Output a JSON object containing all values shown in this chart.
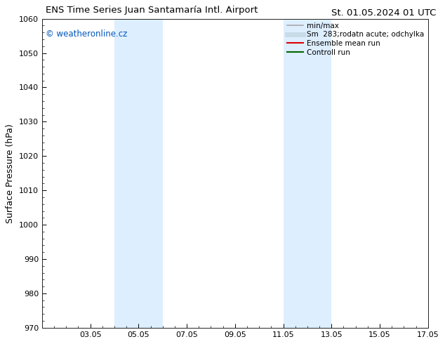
{
  "title_left": "ENS Time Series Juan Santamaría Intl. Airport",
  "title_right": "St. 01.05.2024 01 UTC",
  "ylabel": "Surface Pressure (hPa)",
  "ylim": [
    970,
    1060
  ],
  "yticks": [
    970,
    980,
    990,
    1000,
    1010,
    1020,
    1030,
    1040,
    1050,
    1060
  ],
  "xlim": [
    1.0,
    17.0
  ],
  "xtick_labels": [
    "03.05",
    "05.05",
    "07.05",
    "09.05",
    "11.05",
    "13.05",
    "15.05",
    "17.05"
  ],
  "xtick_positions": [
    3,
    5,
    7,
    9,
    11,
    13,
    15,
    17
  ],
  "shaded_bands": [
    {
      "x_start": 4.0,
      "x_end": 6.0
    },
    {
      "x_start": 11.0,
      "x_end": 13.0
    }
  ],
  "shaded_color": "#ddeeff",
  "background_color": "#ffffff",
  "watermark_text": "© weatheronline.cz",
  "watermark_color": "#0055bb",
  "legend_items": [
    {
      "label": "min/max",
      "color": "#aaaaaa",
      "lw": 1.2
    },
    {
      "label": "Sm  283;rodatn acute; odchylka",
      "color": "#c8dce8",
      "lw": 5
    },
    {
      "label": "Ensemble mean run",
      "color": "#dd0000",
      "lw": 1.5
    },
    {
      "label": "Controll run",
      "color": "#006600",
      "lw": 1.5
    }
  ],
  "tick_direction": "in",
  "title_fontsize": 9.5,
  "axis_label_fontsize": 9,
  "tick_label_fontsize": 8,
  "watermark_fontsize": 8.5,
  "legend_fontsize": 7.5
}
